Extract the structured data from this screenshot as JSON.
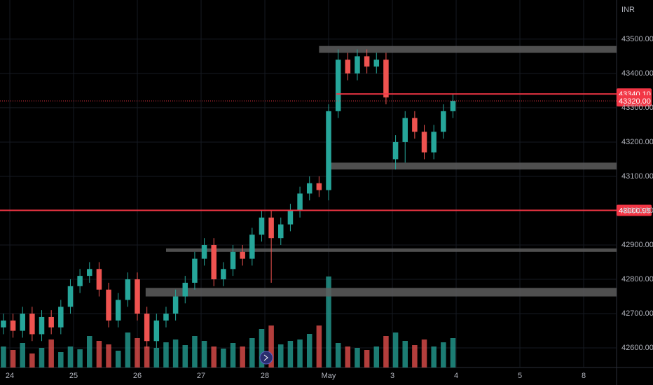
{
  "chart_data": {
    "type": "candlestick",
    "currency": "INR",
    "up_color": "#26a69a",
    "down_color": "#ef5350",
    "grid": true,
    "x": [
      -0.1,
      0.05,
      0.2,
      0.35,
      0.5,
      0.65,
      0.8,
      0.95,
      1.1,
      1.25,
      1.4,
      1.55,
      1.7,
      1.85,
      2.0,
      2.15,
      2.3,
      2.45,
      2.6,
      2.75,
      2.9,
      3.05,
      3.2,
      3.35,
      3.5,
      3.65,
      3.8,
      3.95,
      4.1,
      4.25,
      4.4,
      4.55,
      4.7,
      4.85,
      5.0,
      5.15,
      5.3,
      5.45,
      5.6,
      5.75,
      5.9,
      6.05,
      6.2,
      6.35,
      6.5,
      6.65,
      6.8,
      6.95
    ],
    "open": [
      42660,
      42680,
      42650,
      42700,
      42640,
      42690,
      42660,
      42720,
      42780,
      42810,
      42830,
      42770,
      42680,
      42740,
      42800,
      42700,
      42620,
      42680,
      42700,
      42750,
      42790,
      42860,
      42900,
      42800,
      42830,
      42880,
      42860,
      42930,
      42980,
      42920,
      42960,
      43000,
      43050,
      43080,
      43060,
      43290,
      43440,
      43400,
      43450,
      43420,
      43440,
      43150,
      43200,
      43270,
      43230,
      43170,
      43230,
      43290
    ],
    "high": [
      42700,
      42700,
      42720,
      42720,
      42710,
      42710,
      42740,
      42800,
      42830,
      42850,
      42850,
      42790,
      42760,
      42820,
      42820,
      42720,
      42700,
      42720,
      42770,
      42810,
      42880,
      42920,
      42920,
      42850,
      42900,
      42900,
      42950,
      43000,
      43000,
      42980,
      43020,
      43070,
      43100,
      43100,
      43310,
      43470,
      43460,
      43470,
      43470,
      43460,
      43460,
      43220,
      43290,
      43290,
      43250,
      43250,
      43310,
      43340
    ],
    "low": [
      42640,
      42630,
      42630,
      42620,
      42620,
      42640,
      42640,
      42700,
      42760,
      42790,
      42750,
      42660,
      42660,
      42720,
      42680,
      42600,
      42600,
      42660,
      42680,
      42730,
      42770,
      42840,
      42780,
      42780,
      42810,
      42840,
      42840,
      42910,
      42790,
      42900,
      42940,
      42980,
      43030,
      43040,
      43030,
      43270,
      43380,
      43380,
      43400,
      43400,
      43310,
      43120,
      43140,
      43210,
      43150,
      43150,
      43210,
      43270
    ],
    "close": [
      42680,
      42650,
      42700,
      42640,
      42690,
      42660,
      42720,
      42780,
      42810,
      42830,
      42770,
      42680,
      42740,
      42800,
      42700,
      42620,
      42680,
      42700,
      42750,
      42790,
      42860,
      42900,
      42800,
      42830,
      42880,
      42860,
      42930,
      42980,
      42920,
      42960,
      43000,
      43050,
      43080,
      43060,
      43290,
      43440,
      43400,
      43450,
      43420,
      43440,
      43330,
      43200,
      43270,
      43230,
      43170,
      43230,
      43290,
      43320
    ],
    "volume": [
      30,
      25,
      35,
      20,
      28,
      40,
      22,
      30,
      26,
      45,
      38,
      33,
      24,
      50,
      42,
      30,
      28,
      36,
      40,
      32,
      45,
      38,
      30,
      27,
      35,
      30,
      42,
      55,
      60,
      33,
      38,
      40,
      48,
      60,
      130,
      35,
      30,
      28,
      25,
      30,
      45,
      50,
      38,
      32,
      40,
      30,
      36,
      42
    ],
    "xlim": [
      -0.154,
      9.516
    ],
    "xticks": [
      {
        "value": 0,
        "label": "24"
      },
      {
        "value": 1,
        "label": "25"
      },
      {
        "value": 2,
        "label": "26"
      },
      {
        "value": 3,
        "label": "27"
      },
      {
        "value": 4,
        "label": "28"
      },
      {
        "value": 5,
        "label": "May"
      },
      {
        "value": 6,
        "label": "3"
      },
      {
        "value": 7,
        "label": "4"
      },
      {
        "value": 8,
        "label": "5"
      },
      {
        "value": 9,
        "label": "8"
      }
    ],
    "ylim": [
      42543,
      43614
    ],
    "yticks": [
      {
        "value": 42600,
        "label": "42600.00"
      },
      {
        "value": 42700,
        "label": "42700.00"
      },
      {
        "value": 42800,
        "label": "42800.00"
      },
      {
        "value": 42900,
        "label": "42900.00"
      },
      {
        "value": 43000,
        "label": "43000.00"
      },
      {
        "value": 43100,
        "label": "43100.00"
      },
      {
        "value": 43200,
        "label": "43200.00"
      },
      {
        "value": 43300,
        "label": "43300.00"
      },
      {
        "value": 43400,
        "label": "43400.00"
      },
      {
        "value": 43500,
        "label": "43500.00"
      }
    ],
    "zones": [
      {
        "low": 43460,
        "high": 43480,
        "x_start": 4.85
      },
      {
        "low": 43120,
        "high": 43140,
        "x_start": 4.98
      },
      {
        "low": 42880,
        "high": 42890,
        "x_start": 2.45
      },
      {
        "low": 42750,
        "high": 42775,
        "x_start": 2.13
      }
    ],
    "levels": [
      {
        "value": 43340.1,
        "label": "43340.10",
        "x_start": 5.12
      },
      {
        "value": 43000.95,
        "label": "43000.95",
        "x_start": -0.154
      }
    ],
    "last_price": {
      "value": 43320,
      "label": "43320.00"
    }
  }
}
